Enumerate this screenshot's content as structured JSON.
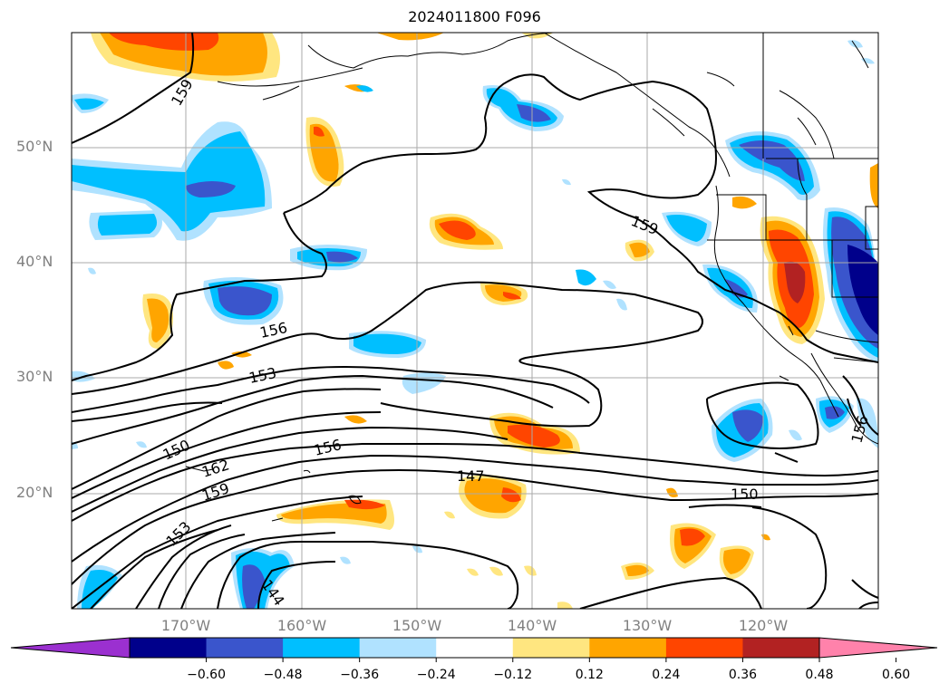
{
  "title": "2024011800 F096",
  "latitude_labels": [
    "50°N",
    "40°N",
    "30°N",
    "20°N"
  ],
  "longitude_labels": [
    "170°W",
    "160°W",
    "150°W",
    "140°W",
    "130°W",
    "120°W"
  ],
  "contour_labels": [
    "159",
    "159",
    "156",
    "153",
    "150",
    "162",
    "159",
    "156",
    "147",
    "150",
    "153",
    "144",
    "156"
  ],
  "colorbar": {
    "ticks": [
      "−0.60",
      "−0.48",
      "−0.36",
      "−0.24",
      "−0.12",
      "0.12",
      "0.24",
      "0.36",
      "0.48",
      "0.60"
    ],
    "colors": [
      "#9b30d0",
      "#00008b",
      "#3a55cc",
      "#00bfff",
      "#b0e2ff",
      "#ffffff",
      "#ffe680",
      "#ffa500",
      "#ff4500",
      "#b22222",
      "#ff82ab"
    ]
  },
  "colors": {
    "grid": "#aaaaaa",
    "contour": "#000000",
    "axis_label": "#808080"
  }
}
